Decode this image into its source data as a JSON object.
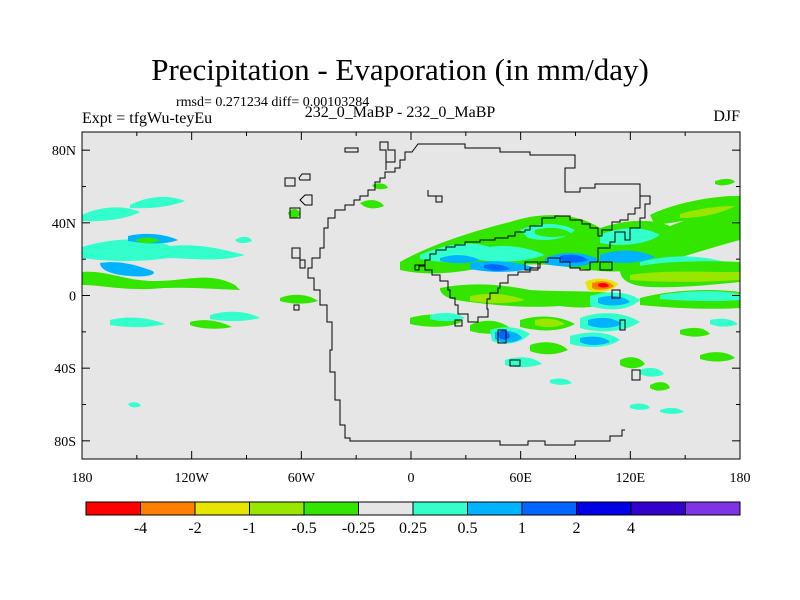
{
  "header": {
    "title": "Precipitation - Evaporation (in mm/day)",
    "stats": "rmsd= 0.271234 diff= 0.00103284",
    "expt": "Expt = tfgWu-teyEu",
    "center_label": "232_0_MaBP - 232_0_MaBP",
    "season": "DJF"
  },
  "chart_data": {
    "type": "heatmap",
    "title": "Precipitation - Evaporation (in mm/day)",
    "xlabel": "",
    "ylabel": "",
    "xlim": [
      -180,
      180
    ],
    "ylim": [
      -90,
      90
    ],
    "x_ticks": [
      {
        "value": -180,
        "label": "180"
      },
      {
        "value": -120,
        "label": "120W"
      },
      {
        "value": -60,
        "label": "60W"
      },
      {
        "value": 0,
        "label": "0"
      },
      {
        "value": 60,
        "label": "60E"
      },
      {
        "value": 120,
        "label": "120E"
      },
      {
        "value": 180,
        "label": "180"
      }
    ],
    "y_ticks": [
      {
        "value": 80,
        "label": "80N"
      },
      {
        "value": 40,
        "label": "40N"
      },
      {
        "value": 0,
        "label": "0"
      },
      {
        "value": -40,
        "label": "40S"
      },
      {
        "value": -80,
        "label": "80S"
      }
    ],
    "background_color": "#e6e6e6",
    "colorbar": {
      "colors": [
        "#ff0000",
        "#ff8000",
        "#e6e600",
        "#99e600",
        "#33e600",
        "#e6e6e6",
        "#33ffcc",
        "#00b3ff",
        "#0066ff",
        "#0000e6",
        "#3300cc",
        "#8033e6"
      ],
      "labels": [
        "-4",
        "-2",
        "-1",
        "-0.5",
        "-0.25",
        "0.25",
        "0.5",
        "1",
        "2",
        "4"
      ]
    },
    "regions": [
      {
        "class": "<-0.25",
        "color": "#33e600",
        "lon": [
          -155,
          -120
        ],
        "lat": [
          8,
          14
        ]
      },
      {
        "class": "0.25-0.5",
        "color": "#33ffcc",
        "lon": [
          -170,
          -150
        ],
        "lat": [
          24,
          30
        ]
      },
      {
        "class": "0.5-1",
        "color": "#00b3ff",
        "lon": [
          -160,
          -130
        ],
        "lat": [
          11,
          15
        ]
      },
      {
        "class": "<-0.25",
        "color": "#33e600",
        "lon": [
          45,
          110
        ],
        "lat": [
          -6,
          -2
        ]
      },
      {
        "class": "0.5-1",
        "color": "#00b3ff",
        "lon": [
          70,
          100
        ],
        "lat": [
          7,
          13
        ]
      },
      {
        "class": "1-2",
        "color": "#0066ff",
        "lon": [
          45,
          53
        ],
        "lat": [
          -25,
          -20
        ]
      },
      {
        "class": "<-1",
        "color": "#ff8000",
        "lon": [
          97,
          112
        ],
        "lat": [
          0,
          6
        ]
      },
      {
        "class": "<-4",
        "color": "#ff0000",
        "lon": [
          102,
          108
        ],
        "lat": [
          2,
          4
        ]
      },
      {
        "class": "<-0.25",
        "color": "#33e600",
        "lon": [
          140,
          178
        ],
        "lat": [
          35,
          43
        ]
      },
      {
        "class": "<-0.25",
        "color": "#33e600",
        "lon": [
          130,
          180
        ],
        "lat": [
          1,
          5
        ]
      },
      {
        "class": "0.25-0.5",
        "color": "#33ffcc",
        "lon": [
          148,
          180
        ],
        "lat": [
          -22,
          -18
        ]
      }
    ]
  }
}
